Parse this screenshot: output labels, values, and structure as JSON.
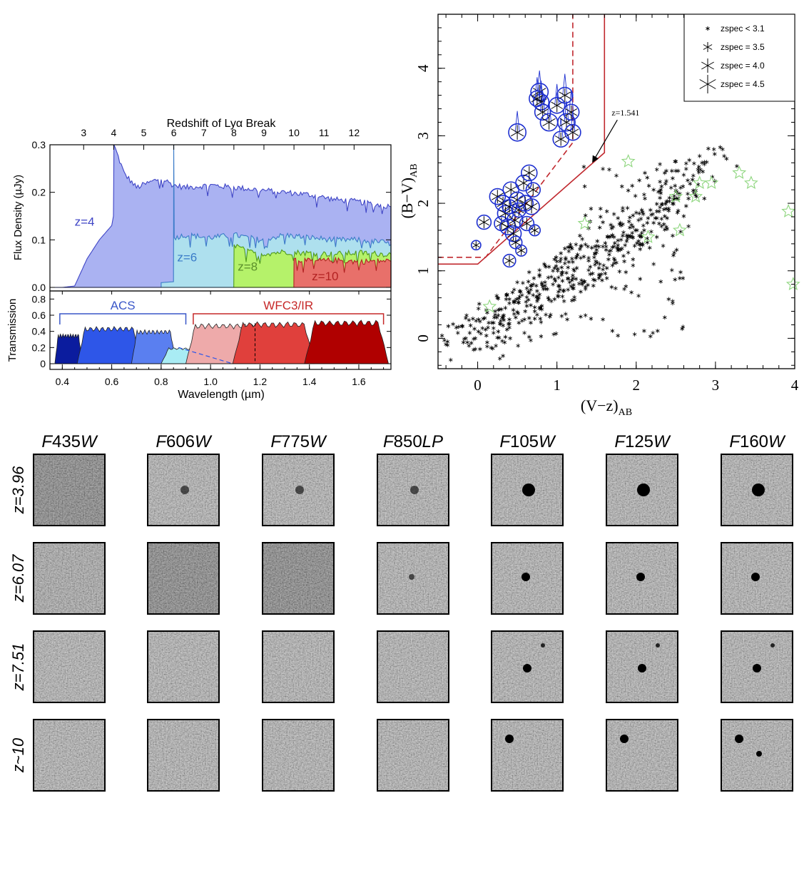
{
  "chart_data": [
    {
      "type": "area",
      "panel": "spectra",
      "title": "",
      "xlabel": "Wavelength (µm)",
      "ylabel": "Flux Density (µJy)",
      "top_axis_label": "Redshift of Lyα Break",
      "top_ticks": [
        "3",
        "4",
        "5",
        "6",
        "7",
        "8",
        "9",
        "10",
        "11",
        "12"
      ],
      "top_tick_values": [
        3,
        4,
        5,
        6,
        7,
        8,
        9,
        10,
        11,
        12
      ],
      "xlim": [
        0.35,
        1.73
      ],
      "ylim": [
        0,
        0.3
      ],
      "yticks": [
        "0.0",
        "0.1",
        "0.2",
        "0.3"
      ],
      "ytick_values": [
        0.0,
        0.1,
        0.2,
        0.3
      ],
      "series": [
        {
          "name": "z=4",
          "color": "#aab2f2",
          "line": "#3f45c6",
          "text_color": "#3f45c6",
          "break": 0.6078,
          "x": [
            0.35,
            0.4,
            0.45,
            0.5,
            0.55,
            0.6,
            0.607,
            0.609,
            0.65,
            0.7,
            0.75,
            0.8,
            0.85,
            0.9,
            1.0,
            1.1,
            1.2,
            1.3,
            1.4,
            1.5,
            1.6,
            1.7,
            1.73
          ],
          "values": [
            0,
            0,
            0.003,
            0.06,
            0.1,
            0.13,
            0.15,
            0.3,
            0.24,
            0.21,
            0.22,
            0.23,
            0.215,
            0.21,
            0.215,
            0.21,
            0.205,
            0.2,
            0.195,
            0.185,
            0.18,
            0.172,
            0.17
          ]
        },
        {
          "name": "z=6",
          "color": "#aee0ee",
          "line": "#3a7bc8",
          "text_color": "#3a7bc8",
          "break": 0.851,
          "x": [
            0.8,
            0.85,
            0.851,
            0.853,
            0.9,
            1.0,
            1.1,
            1.2,
            1.3,
            1.4,
            1.5,
            1.6,
            1.7,
            1.73
          ],
          "values": [
            0.01,
            0.012,
            0.3,
            0.105,
            0.11,
            0.105,
            0.11,
            0.1,
            0.11,
            0.105,
            0.1,
            0.1,
            0.095,
            0.09
          ]
        },
        {
          "name": "z=8",
          "color": "#b5f26a",
          "line": "#4f9a1c",
          "text_color": "#5a8f2a",
          "break": 1.094,
          "x": [
            1.094,
            1.095,
            1.15,
            1.2,
            1.3,
            1.4,
            1.5,
            1.6,
            1.7,
            1.73
          ],
          "values": [
            0,
            0.09,
            0.075,
            0.07,
            0.075,
            0.072,
            0.07,
            0.073,
            0.07,
            0.07
          ]
        },
        {
          "name": "z=10",
          "color": "#e8706a",
          "line": "#b22222",
          "text_color": "#b22222",
          "break": 1.337,
          "x": [
            1.337,
            1.338,
            1.4,
            1.5,
            1.6,
            1.7,
            1.73
          ],
          "values": [
            0,
            0.06,
            0.055,
            0.057,
            0.054,
            0.056,
            0.055
          ]
        }
      ]
    },
    {
      "type": "area",
      "panel": "filter_transmission",
      "xlabel": "Wavelength (µm)",
      "ylabel": "Transmission",
      "xlim": [
        0.35,
        1.73
      ],
      "xticks": [
        "0.4",
        "0.6",
        "0.8",
        "1.0",
        "1.2",
        "1.4",
        "1.6"
      ],
      "xtick_values": [
        0.4,
        0.6,
        0.8,
        1.0,
        1.2,
        1.4,
        1.6
      ],
      "ylim": [
        0,
        0.9
      ],
      "yticks": [
        "0",
        "0.2",
        "0.4",
        "0.6",
        "0.8"
      ],
      "ytick_values": [
        0,
        0.2,
        0.4,
        0.6,
        0.8
      ],
      "groups": [
        {
          "label": "ACS",
          "color": "#3a57c8",
          "x_range": [
            0.39,
            0.9
          ]
        },
        {
          "label": "WFC3/IR",
          "color": "#c62828",
          "x_range": [
            0.93,
            1.7
          ]
        }
      ],
      "filters": [
        {
          "name": "F435W",
          "color": "#0b1c9e",
          "range": [
            0.37,
            0.48
          ],
          "peak": 0.37
        },
        {
          "name": "F606W",
          "color": "#2e56e8",
          "range": [
            0.46,
            0.72
          ],
          "peak": 0.46
        },
        {
          "name": "F775W",
          "color": "#5a7ff0",
          "range": [
            0.68,
            0.86
          ],
          "peak": 0.42
        },
        {
          "name": "F850LP",
          "color": "#a9ecf4",
          "range": [
            0.8,
            1.05
          ],
          "peak": 0.2
        },
        {
          "name": "F105W",
          "color": "#eeaaaa",
          "range": [
            0.9,
            1.21
          ],
          "peak": 0.5
        },
        {
          "name": "F125W",
          "color": "#e0403c",
          "range": [
            1.09,
            1.42
          ],
          "peak": 0.52
        },
        {
          "name": "F160W",
          "color": "#b00000",
          "range": [
            1.38,
            1.72
          ],
          "peak": 0.54
        }
      ]
    },
    {
      "type": "scatter",
      "panel": "color_color",
      "xlabel": "(V−z)",
      "xlabel_sub": "AB",
      "ylabel": "(B−V)",
      "ylabel_sub": "AB",
      "xlim": [
        -0.5,
        4.0
      ],
      "ylim": [
        -0.45,
        4.8
      ],
      "xticks": [
        "0",
        "1",
        "2",
        "3",
        "4"
      ],
      "xtick_values": [
        0,
        1,
        2,
        3,
        4
      ],
      "yticks": [
        "0",
        "1",
        "2",
        "3",
        "4"
      ],
      "ytick_values": [
        0,
        1,
        2,
        3,
        4
      ],
      "selection_solid": [
        [
          -0.5,
          1.1
        ],
        [
          0,
          1.1
        ],
        [
          1.6,
          2.75
        ],
        [
          1.6,
          4.8
        ]
      ],
      "selection_dashed": [
        [
          -0.5,
          1.2
        ],
        [
          0.1,
          1.2
        ],
        [
          1.2,
          2.9
        ],
        [
          1.2,
          4.8
        ]
      ],
      "annotation": {
        "text": "z=1.541",
        "x": 1.42,
        "y": 2.58
      },
      "legend": {
        "placement": "top-right",
        "entries": [
          "zspec < 3.1",
          "zspec = 3.5",
          "zspec = 4.0",
          "zspec = 4.5"
        ]
      },
      "series": [
        {
          "name": "zspec < 3.1",
          "marker": "star",
          "color": "#000000",
          "points": []
        },
        {
          "name": "",
          "marker": "open-star",
          "color": "#8ed67e",
          "points": [
            [
              0.15,
              0.47
            ],
            [
              1.9,
              2.62
            ],
            [
              1.35,
              1.7
            ],
            [
              2.5,
              2.1
            ],
            [
              2.8,
              2.3
            ],
            [
              2.95,
              2.3
            ],
            [
              2.75,
              2.1
            ],
            [
              3.3,
              2.45
            ],
            [
              3.45,
              2.3
            ],
            [
              3.92,
              1.88
            ],
            [
              3.98,
              0.8
            ],
            [
              2.55,
              1.6
            ],
            [
              2.15,
              1.5
            ]
          ]
        },
        {
          "name": "",
          "marker": "spec-z",
          "color": "#1d2fd0",
          "points": [
            [
              -0.02,
              1.38,
              0.6
            ],
            [
              0.08,
              1.72,
              0.9
            ],
            [
              0.25,
              2.1,
              1
            ],
            [
              0.3,
              1.7,
              0.9
            ],
            [
              0.32,
              2.0,
              1
            ],
            [
              0.35,
              1.85,
              1
            ],
            [
              0.38,
              1.65,
              1
            ],
            [
              0.4,
              1.95,
              0.9
            ],
            [
              0.42,
              2.2,
              1
            ],
            [
              0.45,
              1.55,
              1
            ],
            [
              0.47,
              1.75,
              1
            ],
            [
              0.5,
              2.05,
              1
            ],
            [
              0.52,
              1.9,
              0.9
            ],
            [
              0.55,
              1.3,
              0.7
            ],
            [
              0.58,
              2.3,
              1
            ],
            [
              0.6,
              2.0,
              1
            ],
            [
              0.62,
              1.7,
              0.9
            ],
            [
              0.65,
              2.45,
              1
            ],
            [
              0.68,
              1.95,
              1
            ],
            [
              0.7,
              2.2,
              0.9
            ],
            [
              0.4,
              1.15,
              0.8
            ],
            [
              0.48,
              1.42,
              0.8
            ],
            [
              0.72,
              1.6,
              0.7
            ],
            [
              0.78,
              3.65,
              1.1
            ],
            [
              0.8,
              3.5,
              1
            ],
            [
              0.82,
              3.35,
              1
            ],
            [
              0.9,
              3.2,
              1.1
            ],
            [
              1.0,
              3.45,
              1
            ],
            [
              1.05,
              2.95,
              1
            ],
            [
              1.12,
              3.2,
              1.1
            ],
            [
              1.18,
              3.35,
              1
            ],
            [
              1.2,
              3.05,
              1
            ],
            [
              1.1,
              3.6,
              1
            ],
            [
              0.5,
              3.05,
              1.1
            ],
            [
              0.75,
              3.55,
              1
            ]
          ]
        }
      ]
    }
  ],
  "images_panel": {
    "filters": [
      "F435W",
      "F606W",
      "F775W",
      "F850LP",
      "F105W",
      "F125W",
      "F160W"
    ],
    "rows": [
      {
        "label": "z=3.96",
        "visible_from": 1
      },
      {
        "label": "z=6.07",
        "visible_from": 3
      },
      {
        "label": "z=7.51",
        "visible_from": 4
      },
      {
        "label": "z~10",
        "visible_from": 4
      }
    ]
  }
}
